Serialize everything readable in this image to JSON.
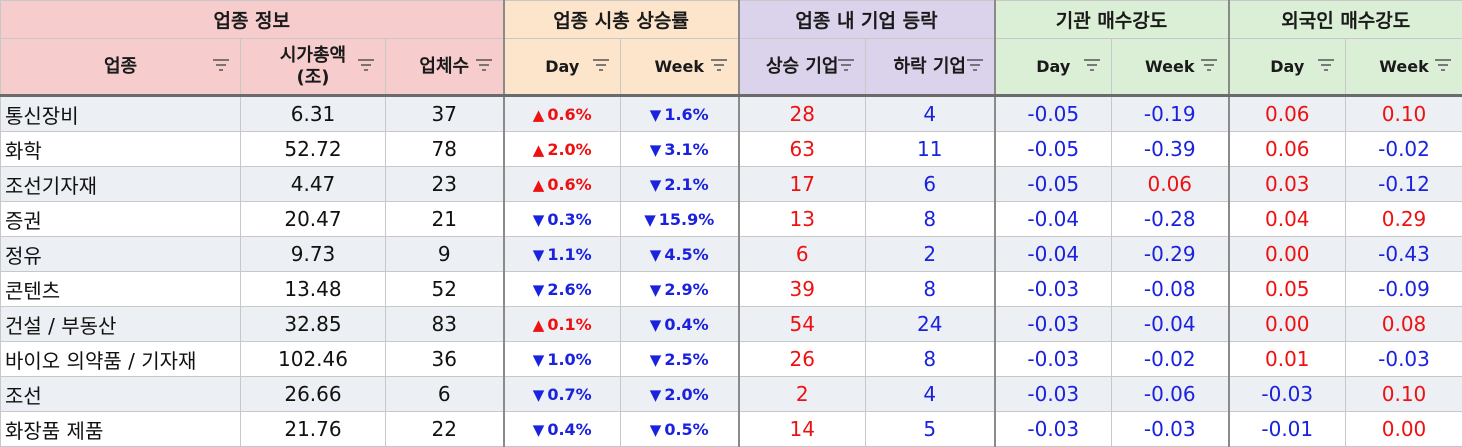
{
  "groups": {
    "sector_info": "업종 정보",
    "market_cap_change": "업종 시총 상승률",
    "company_movement": "업종 내 기업 등락",
    "inst_strength": "기관 매수강도",
    "foreign_strength": "외국인 매수강도"
  },
  "columns": {
    "sector": "업종",
    "market_cap_line1": "시가총액",
    "market_cap_line2": "(조)",
    "companies": "업체수",
    "day": "Day",
    "week": "Week",
    "rising": "상승 기업",
    "falling": "하락 기업",
    "inst_day": "Day",
    "inst_week": "Week",
    "for_day": "Day",
    "for_week": "Week"
  },
  "colors": {
    "positive": "#ee1111",
    "negative": "#1a22dd"
  },
  "icons": {
    "up": "▲",
    "down": "▼",
    "filter": "filter-icon"
  },
  "rows": [
    {
      "sector": "통신장비",
      "cap": "6.31",
      "count": "37",
      "day_dir": "up",
      "day": "0.6%",
      "week_dir": "down",
      "week": "1.6%",
      "rising": "28",
      "falling": "4",
      "inst_day": "-0.05",
      "inst_week": "-0.19",
      "for_day": "0.06",
      "for_week": "0.10"
    },
    {
      "sector": "화학",
      "cap": "52.72",
      "count": "78",
      "day_dir": "up",
      "day": "2.0%",
      "week_dir": "down",
      "week": "3.1%",
      "rising": "63",
      "falling": "11",
      "inst_day": "-0.05",
      "inst_week": "-0.39",
      "for_day": "0.06",
      "for_week": "-0.02"
    },
    {
      "sector": "조선기자재",
      "cap": "4.47",
      "count": "23",
      "day_dir": "up",
      "day": "0.6%",
      "week_dir": "down",
      "week": "2.1%",
      "rising": "17",
      "falling": "6",
      "inst_day": "-0.05",
      "inst_week": "0.06",
      "for_day": "0.03",
      "for_week": "-0.12"
    },
    {
      "sector": "증권",
      "cap": "20.47",
      "count": "21",
      "day_dir": "down",
      "day": "0.3%",
      "week_dir": "down",
      "week": "15.9%",
      "rising": "13",
      "falling": "8",
      "inst_day": "-0.04",
      "inst_week": "-0.28",
      "for_day": "0.04",
      "for_week": "0.29"
    },
    {
      "sector": "정유",
      "cap": "9.73",
      "count": "9",
      "day_dir": "down",
      "day": "1.1%",
      "week_dir": "down",
      "week": "4.5%",
      "rising": "6",
      "falling": "2",
      "inst_day": "-0.04",
      "inst_week": "-0.29",
      "for_day": "0.00",
      "for_week": "-0.43"
    },
    {
      "sector": "콘텐츠",
      "cap": "13.48",
      "count": "52",
      "day_dir": "down",
      "day": "2.6%",
      "week_dir": "down",
      "week": "2.9%",
      "rising": "39",
      "falling": "8",
      "inst_day": "-0.03",
      "inst_week": "-0.08",
      "for_day": "0.05",
      "for_week": "-0.09"
    },
    {
      "sector": "건설 / 부동산",
      "cap": "32.85",
      "count": "83",
      "day_dir": "up",
      "day": "0.1%",
      "week_dir": "down",
      "week": "0.4%",
      "rising": "54",
      "falling": "24",
      "inst_day": "-0.03",
      "inst_week": "-0.04",
      "for_day": "0.00",
      "for_week": "0.08"
    },
    {
      "sector": "바이오 의약품 / 기자재",
      "cap": "102.46",
      "count": "36",
      "day_dir": "down",
      "day": "1.0%",
      "week_dir": "down",
      "week": "2.5%",
      "rising": "26",
      "falling": "8",
      "inst_day": "-0.03",
      "inst_week": "-0.02",
      "for_day": "0.01",
      "for_week": "-0.03"
    },
    {
      "sector": "조선",
      "cap": "26.66",
      "count": "6",
      "day_dir": "down",
      "day": "0.7%",
      "week_dir": "down",
      "week": "2.0%",
      "rising": "2",
      "falling": "4",
      "inst_day": "-0.03",
      "inst_week": "-0.06",
      "for_day": "-0.03",
      "for_week": "0.10"
    },
    {
      "sector": "화장품 제품",
      "cap": "21.76",
      "count": "22",
      "day_dir": "down",
      "day": "0.4%",
      "week_dir": "down",
      "week": "0.5%",
      "rising": "14",
      "falling": "5",
      "inst_day": "-0.03",
      "inst_week": "-0.03",
      "for_day": "-0.01",
      "for_week": "0.00"
    }
  ]
}
